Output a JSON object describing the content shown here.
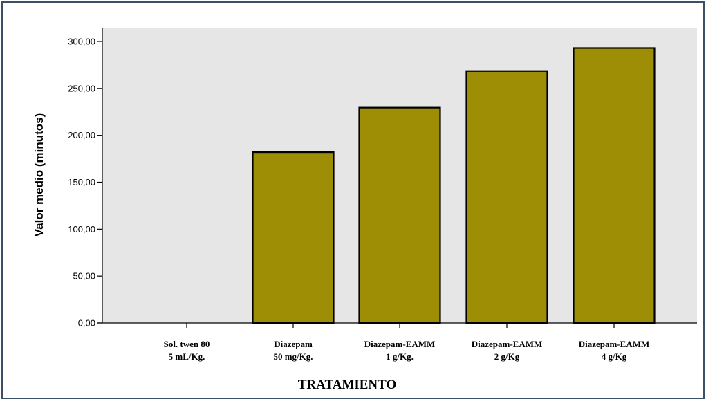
{
  "chart_data": {
    "type": "bar",
    "categories": [
      [
        "Sol. twen 80",
        "5 mL/Kg."
      ],
      [
        "Diazepam",
        "50 mg/Kg."
      ],
      [
        "Diazepam-EAMM",
        "1 g/Kg."
      ],
      [
        "Diazepam-EAMM",
        "2 g/Kg"
      ],
      [
        "Diazepam-EAMM",
        "4 g/Kg"
      ]
    ],
    "values": [
      0,
      182,
      229.5,
      268.5,
      293
    ],
    "ylabel": "Valor medio (minutos)",
    "xlabel": "TRATAMIENTO",
    "ylim": [
      0,
      300
    ],
    "yticks": [
      0,
      50,
      100,
      150,
      200,
      250,
      300
    ],
    "ytick_labels": [
      "0,00",
      "50,00",
      "100,00",
      "150,00",
      "200,00",
      "250,00",
      "300,00"
    ],
    "grid": false,
    "colors": {
      "bar": "#9e8e06",
      "plot_background": "#e6e6e6",
      "frame": "#3a5068"
    }
  }
}
